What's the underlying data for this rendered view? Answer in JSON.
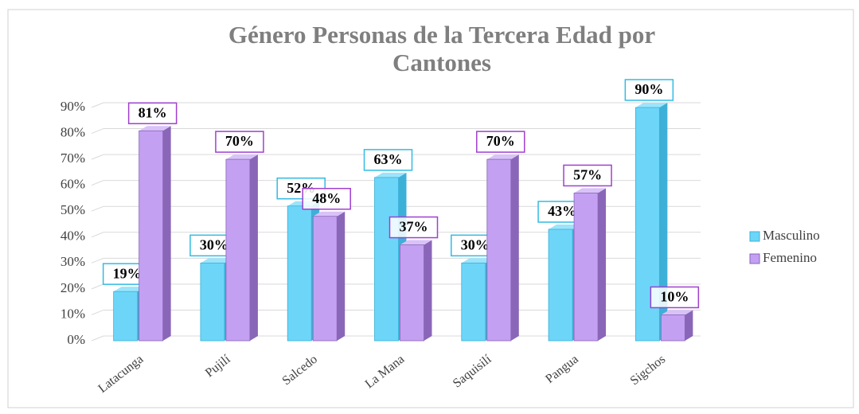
{
  "chart_data": {
    "type": "bar3d",
    "title": [
      "Género Personas de la Tercera Edad por",
      "Cantones"
    ],
    "categories": [
      "Latacunga",
      "Pujilí",
      "Salcedo",
      "La Mana",
      "Saquisilí",
      "Pangua",
      "Sigchos"
    ],
    "series": [
      {
        "name": "Masculino",
        "color": "#6dd6f8",
        "values": [
          19,
          30,
          52,
          63,
          30,
          43,
          90
        ],
        "value_labels": [
          "19%",
          "30%",
          "52%",
          "63%",
          "30%",
          "43%",
          "90%"
        ]
      },
      {
        "name": "Femenino",
        "color": "#c3a0f2",
        "values": [
          81,
          70,
          48,
          37,
          70,
          57,
          10
        ],
        "value_labels": [
          "81%",
          "70%",
          "48%",
          "37%",
          "70%",
          "57%",
          "10%"
        ]
      }
    ],
    "ylim": [
      0,
      90
    ],
    "yticks": [
      {
        "value": 0,
        "label": "0%"
      },
      {
        "value": 10,
        "label": "10%"
      },
      {
        "value": 20,
        "label": "20%"
      },
      {
        "value": 30,
        "label": "30%"
      },
      {
        "value": 40,
        "label": "40%"
      },
      {
        "value": 50,
        "label": "50%"
      },
      {
        "value": 60,
        "label": "60%"
      },
      {
        "value": 70,
        "label": "70%"
      },
      {
        "value": 80,
        "label": "80%"
      },
      {
        "value": 90,
        "label": "90%"
      }
    ],
    "grid": true,
    "legend": "right"
  }
}
